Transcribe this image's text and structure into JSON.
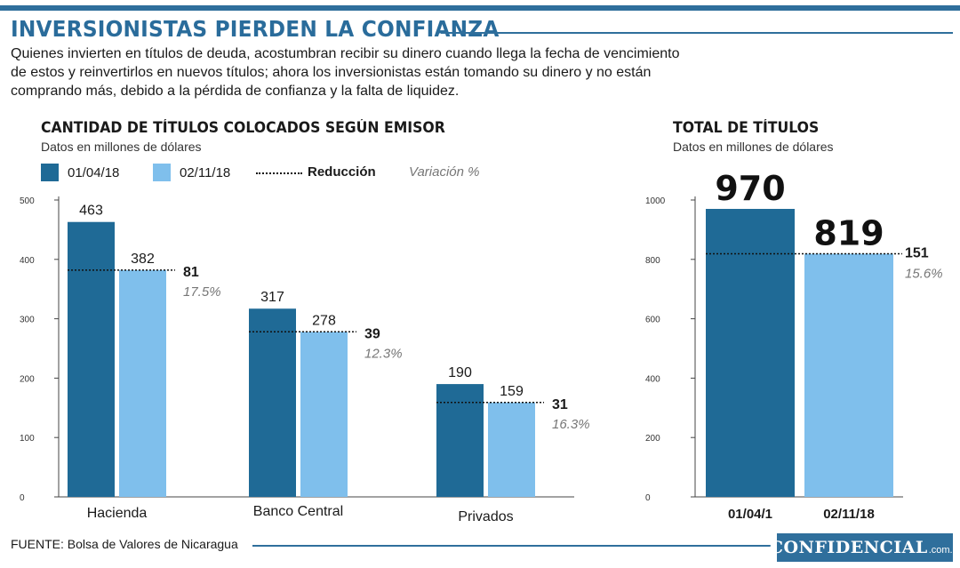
{
  "header": {
    "title": "INVERSIONISTAS PIERDEN LA CONFIANZA",
    "intro": "Quienes invierten en títulos de deuda, acostumbran recibir su dinero cuando llega la fecha de vencimiento de estos y reinvertirlos en nuevos títulos; ahora los inversionistas están tomando su dinero y no están comprando más, debido a la pérdida de confianza y la falta de liquidez."
  },
  "legend": {
    "date1": "01/04/18",
    "date2": "02/11/18",
    "reduction": "Reducción",
    "variation": "Variación %"
  },
  "colors": {
    "dark_bar": "#1f6a96",
    "light_bar": "#7fbfec",
    "accent": "#2f6f9c"
  },
  "footer": {
    "source": "FUENTE: Bolsa de Valores de Nicaragua",
    "logo_main": "CONFIDENCIAL",
    "logo_suffix": ".com.ni"
  },
  "chart_data": [
    {
      "type": "bar",
      "title": "CANTIDAD DE TÍTULOS COLOCADOS SEGÚN EMISOR",
      "subtitle": "Datos en millones de dólares",
      "categories": [
        "Hacienda",
        "Banco Central",
        "Privados"
      ],
      "series": [
        {
          "name": "01/04/18",
          "values": [
            463,
            317,
            190
          ]
        },
        {
          "name": "02/11/18",
          "values": [
            382,
            278,
            159
          ]
        }
      ],
      "reduction": [
        "81",
        "39",
        "31"
      ],
      "variation": [
        "17.5%",
        "12.3%",
        "16.3%"
      ],
      "value_labels_1": [
        "463",
        "317",
        "190"
      ],
      "value_labels_2": [
        "382",
        "278",
        "159"
      ],
      "yticks": [
        0,
        100,
        200,
        300,
        400,
        500
      ],
      "ytick_labels": [
        "0",
        "100",
        "200",
        "300",
        "400",
        "500"
      ],
      "ylim": [
        0,
        500
      ]
    },
    {
      "type": "bar",
      "title": "TOTAL DE TÍTULOS",
      "subtitle": "Datos en millones de dólares",
      "categories": [
        "01/04/1",
        "02/11/18"
      ],
      "values": [
        970,
        819
      ],
      "value_labels": [
        "970",
        "819"
      ],
      "reduction": "151",
      "variation": "15.6%",
      "yticks": [
        0,
        200,
        400,
        600,
        800,
        1000
      ],
      "ytick_labels": [
        "0",
        "200",
        "400",
        "600",
        "800",
        "1000"
      ],
      "ylim": [
        0,
        1000
      ]
    }
  ]
}
